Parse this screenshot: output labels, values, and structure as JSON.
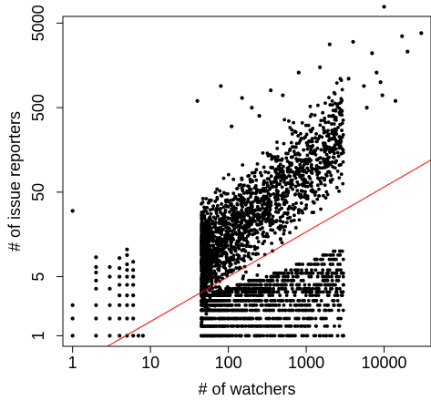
{
  "chart_data": {
    "type": "scatter",
    "title": "",
    "xlabel": "# of watchers",
    "ylabel": "# of issue reporters",
    "x_scale": "log",
    "y_scale": "log",
    "xlim": [
      0.75,
      40000
    ],
    "ylim": [
      0.75,
      6000
    ],
    "x_ticks": [
      {
        "value": 1,
        "label": "1"
      },
      {
        "value": 10,
        "label": "10"
      },
      {
        "value": 100,
        "label": "100"
      },
      {
        "value": 1000,
        "label": "1000"
      },
      {
        "value": 10000,
        "label": "10000"
      }
    ],
    "y_ticks": [
      {
        "value": 1,
        "label": "1"
      },
      {
        "value": 5,
        "label": "5"
      },
      {
        "value": 50,
        "label": "50"
      },
      {
        "value": 500,
        "label": "500"
      },
      {
        "value": 5000,
        "label": "5000"
      }
    ],
    "grid": false,
    "legend": "none",
    "colors": {
      "points": "#000000",
      "fit_line": "#ff0000",
      "axes": "#000000",
      "background": "#ffffff"
    },
    "fit_line": {
      "color": "#ff0000",
      "from": [
        2.8,
        0.75
      ],
      "to": [
        40000,
        120
      ]
    },
    "series": [
      {
        "points": [
          [
            1,
            1
          ],
          [
            1,
            1.6
          ],
          [
            1,
            2.3
          ],
          [
            1,
            30
          ],
          [
            2,
            1
          ],
          [
            2,
            1.6
          ],
          [
            2,
            2.3
          ],
          [
            2,
            3.6
          ],
          [
            2,
            4.5
          ],
          [
            2,
            5.6
          ],
          [
            2,
            6.5
          ],
          [
            2,
            8.5
          ],
          [
            3,
            1
          ],
          [
            3,
            1.6
          ],
          [
            3,
            2.3
          ],
          [
            3,
            3.6
          ],
          [
            3,
            5
          ],
          [
            3,
            6.5
          ],
          [
            4,
            1
          ],
          [
            4,
            1.6
          ],
          [
            4,
            2.3
          ],
          [
            4,
            3
          ],
          [
            4,
            4
          ],
          [
            4,
            5
          ],
          [
            4,
            6.3
          ],
          [
            4,
            8.3
          ],
          [
            5,
            1
          ],
          [
            5,
            1.6
          ],
          [
            5,
            2.3
          ],
          [
            5,
            3
          ],
          [
            5,
            4
          ],
          [
            5,
            5
          ],
          [
            5,
            6
          ],
          [
            5,
            7
          ],
          [
            5,
            9
          ],
          [
            5,
            10.5
          ],
          [
            6,
            1
          ],
          [
            6,
            1.6
          ],
          [
            6,
            2.3
          ],
          [
            6,
            3
          ],
          [
            6,
            4
          ],
          [
            6,
            5
          ],
          [
            6,
            6
          ],
          [
            6,
            7.5
          ],
          [
            7,
            1
          ],
          [
            8,
            1
          ],
          [
            40,
            600
          ],
          [
            60,
            40
          ],
          [
            80,
            900
          ],
          [
            110,
            300
          ],
          [
            150,
            650
          ],
          [
            200,
            500
          ],
          [
            250,
            400
          ],
          [
            350,
            800
          ],
          [
            500,
            700
          ],
          [
            800,
            1300
          ],
          [
            1500,
            1500
          ],
          [
            2000,
            2800
          ],
          [
            3000,
            4
          ],
          [
            3000,
            1
          ],
          [
            3500,
            1100
          ],
          [
            4000,
            3000
          ],
          [
            5500,
            900
          ],
          [
            6000,
            500
          ],
          [
            7000,
            2200
          ],
          [
            8000,
            1300
          ],
          [
            9000,
            1000
          ],
          [
            9500,
            700
          ],
          [
            10000,
            7800
          ],
          [
            14000,
            600
          ],
          [
            17000,
            3500
          ],
          [
            20000,
            2300
          ],
          [
            30000,
            3800
          ]
        ]
      }
    ]
  }
}
